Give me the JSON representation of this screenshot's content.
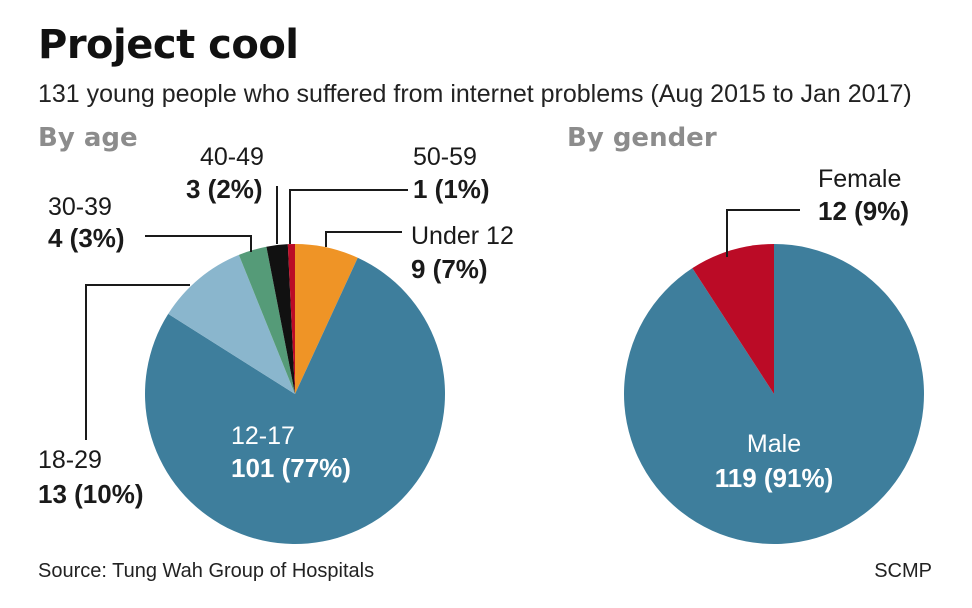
{
  "title": "Project cool",
  "subtitle": "131 young people who suffered from internet problems (Aug 2015 to Jan 2017)",
  "source": "Source: Tung Wah Group of Hospitals",
  "credit": "SCMP",
  "colors": {
    "teal": "#3e7e9c",
    "light_blue": "#8ab6cd",
    "green": "#559b78",
    "black": "#111111",
    "red": "#bb0b26",
    "orange": "#ef9426"
  },
  "chart_data": [
    {
      "type": "pie",
      "title": "By age",
      "slices": [
        {
          "label": "Under 12",
          "value": 9,
          "display": "9 (7%)",
          "color": "#ef9426"
        },
        {
          "label": "12-17",
          "value": 101,
          "display": "101 (77%)",
          "color": "#3e7e9c"
        },
        {
          "label": "18-29",
          "value": 13,
          "display": "13 (10%)",
          "color": "#8ab6cd"
        },
        {
          "label": "30-39",
          "value": 4,
          "display": "4 (3%)",
          "color": "#559b78"
        },
        {
          "label": "40-49",
          "value": 3,
          "display": "3 (2%)",
          "color": "#111111"
        },
        {
          "label": "50-59",
          "value": 1,
          "display": "1 (1%)",
          "color": "#bb0b26"
        }
      ]
    },
    {
      "type": "pie",
      "title": "By gender",
      "slices": [
        {
          "label": "Male",
          "value": 119,
          "display": "119 (91%)",
          "color": "#3e7e9c"
        },
        {
          "label": "Female",
          "value": 12,
          "display": "12 (9%)",
          "color": "#bb0b26"
        }
      ]
    }
  ]
}
